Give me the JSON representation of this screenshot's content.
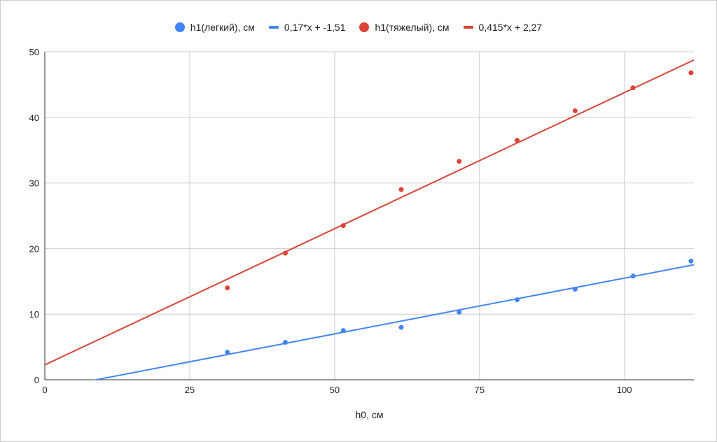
{
  "chart_data": {
    "type": "scatter",
    "title": "",
    "xlabel": "h0, см",
    "ylabel": "",
    "xlim": [
      0,
      112
    ],
    "ylim": [
      0,
      50
    ],
    "xticks": [
      "0",
      "25",
      "50",
      "75",
      "100"
    ],
    "yticks": [
      "0",
      "10",
      "20",
      "30",
      "40",
      "50"
    ],
    "grid": true,
    "legend_position": "top",
    "series": [
      {
        "name": "h1(легкий), см",
        "kind": "points",
        "color": "#4285f4",
        "x": [
          31.5,
          41.5,
          51.5,
          61.5,
          71.5,
          81.5,
          91.5,
          101.5,
          111.5
        ],
        "y": [
          4.2,
          5.7,
          7.5,
          8.0,
          10.3,
          12.2,
          13.8,
          15.8,
          18.1
        ]
      },
      {
        "name": "0,17*x + -1,51",
        "kind": "trendline",
        "color": "#4285f4",
        "slope": 0.17,
        "intercept": -1.51
      },
      {
        "name": "h1(тяжелый), см",
        "kind": "points",
        "color": "#db4437",
        "x": [
          31.5,
          41.5,
          51.5,
          61.5,
          71.5,
          81.5,
          91.5,
          101.5,
          111.5
        ],
        "y": [
          14.0,
          19.3,
          23.5,
          29.0,
          33.3,
          36.5,
          41.0,
          44.5,
          46.8
        ]
      },
      {
        "name": "0,415*x + 2,27",
        "kind": "trendline",
        "color": "#db4437",
        "slope": 0.415,
        "intercept": 2.27
      }
    ]
  }
}
